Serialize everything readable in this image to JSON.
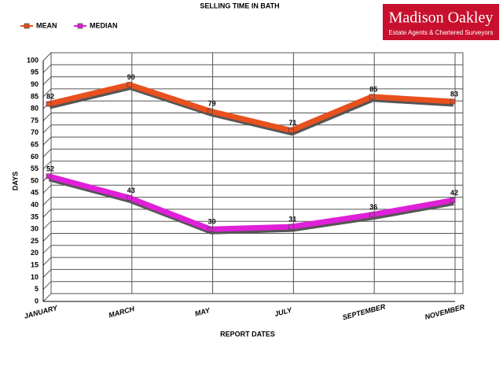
{
  "chart_data": {
    "type": "line",
    "title": "SELLING TIME IN BATH",
    "x_label": "REPORT DATES",
    "y_label": "DAYS",
    "categories": [
      "JANUARY",
      "MARCH",
      "MAY",
      "JULY",
      "SEPTEMBER",
      "NOVEMBER"
    ],
    "series": [
      {
        "name": "MEAN",
        "color": "#e8501e",
        "values": [
          82,
          90,
          79,
          71,
          85,
          83
        ]
      },
      {
        "name": "MEDIAN",
        "color": "#e020d8",
        "values": [
          52,
          43,
          30,
          31,
          36,
          42
        ]
      }
    ],
    "ylim": [
      0,
      100
    ],
    "yticks": [
      0,
      5,
      10,
      15,
      20,
      25,
      30,
      35,
      40,
      45,
      50,
      55,
      60,
      65,
      70,
      75,
      80,
      85,
      90,
      95,
      100
    ],
    "grid": true
  },
  "logo": {
    "name": "Madison Oakley",
    "tagline": "Estate Agents & Chartered Surveyors"
  }
}
